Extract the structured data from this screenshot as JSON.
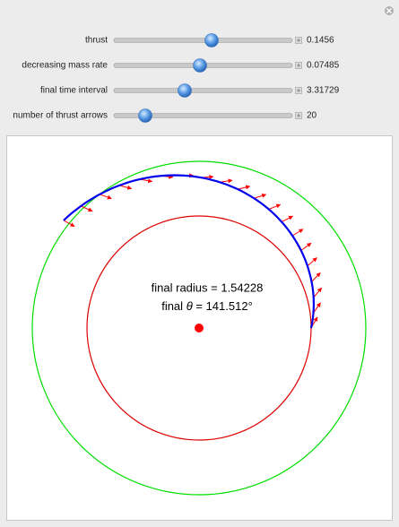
{
  "controls": [
    {
      "label": "thrust",
      "value": 0.1456
    },
    {
      "label": "decreasing mass rate",
      "value": 0.07485
    },
    {
      "label": "final time interval",
      "value": 3.31729
    },
    {
      "label": "number of thrust arrows",
      "value": 20
    }
  ],
  "plot": {
    "final_radius": "final radius = 1.54228",
    "final_theta": {
      "prefix": "final",
      "symbol": "θ",
      "value": "= 141.512°"
    }
  }
}
